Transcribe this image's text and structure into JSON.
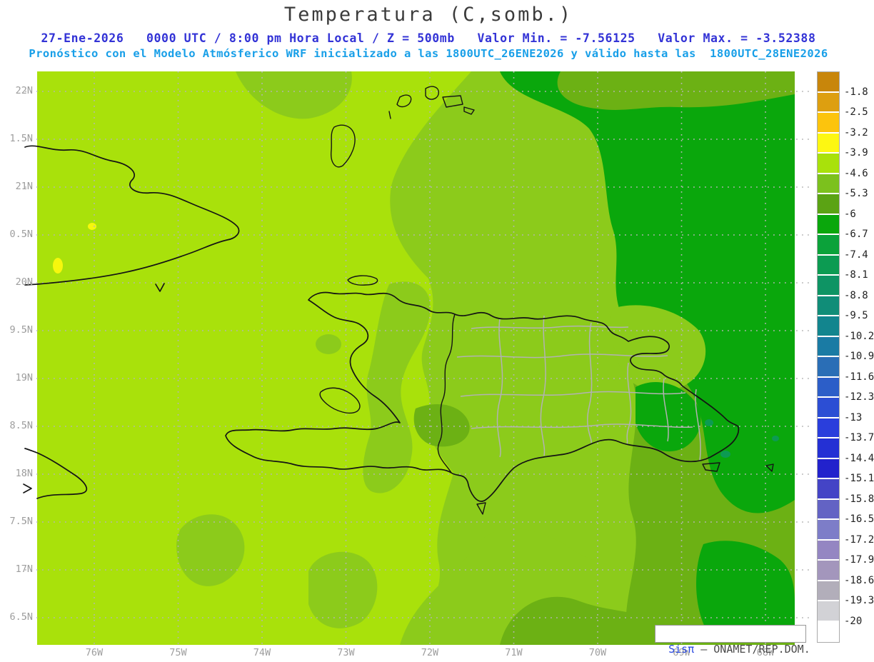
{
  "header": {
    "title": "Temperatura (C,somb.)",
    "line1": "27-Ene-2026   0000 UTC / 8:00 pm Hora Local / Z = 500mb   Valor Min. = -7.56125   Valor Max. = -3.52388",
    "line1_color": "#3333d6",
    "line2": "Pronóstico con el Modelo Atmósferico WRF inicializado a las 1800UTC_26ENE2026 y válido hasta las  1800UTC_28ENE2026",
    "line2_color": "#189fe8"
  },
  "map": {
    "lat_labels": [
      "22N",
      "1.5N",
      "21N",
      "0.5N",
      "20N",
      "9.5N",
      "19N",
      "8.5N",
      "18N",
      "7.5N",
      "17N",
      "6.5N"
    ],
    "lon_labels": [
      "76W",
      "75W",
      "74W",
      "73W",
      "72W",
      "71W",
      "70W",
      "69W",
      "68W"
    ],
    "palette": {
      "background": "#a9e10b",
      "level1": "#8ccb1b",
      "level2": "#6cb114",
      "level3": "#0aa70c",
      "level4": "#0c9b52",
      "yellow_spot": "#f6f70d"
    }
  },
  "colorbar": {
    "tick_labels": [
      "-1.8",
      "-2.5",
      "-3.2",
      "-3.9",
      "-4.6",
      "-5.3",
      "-6",
      "-6.7",
      "-7.4",
      "-8.1",
      "-8.8",
      "-9.5",
      "-10.2",
      "-10.9",
      "-11.6",
      "-12.3",
      "-13",
      "-13.7",
      "-14.4",
      "-15.1",
      "-15.8",
      "-16.5",
      "-17.2",
      "-17.9",
      "-18.6",
      "-19.3",
      "-20"
    ],
    "colors": [
      "#c8860b",
      "#dd9f10",
      "#fcc40d",
      "#fdf712",
      "#a9e10b",
      "#7cc11d",
      "#5ba314",
      "#0aa70c",
      "#0ba23a",
      "#0c9b52",
      "#0e9464",
      "#108d78",
      "#12858e",
      "#1a7ba4",
      "#2a6eb6",
      "#2c5ec8",
      "#2c4ed4",
      "#2a3edc",
      "#2430d4",
      "#2222cc",
      "#4444c6",
      "#6363c4",
      "#7d7dc8",
      "#9486c2",
      "#a396bc",
      "#b2aeba",
      "#d2d2d6",
      "#ffffff"
    ]
  },
  "attribution": {
    "brand": "Sisπ",
    "rest": " – ONAMET/REP.DOM."
  }
}
